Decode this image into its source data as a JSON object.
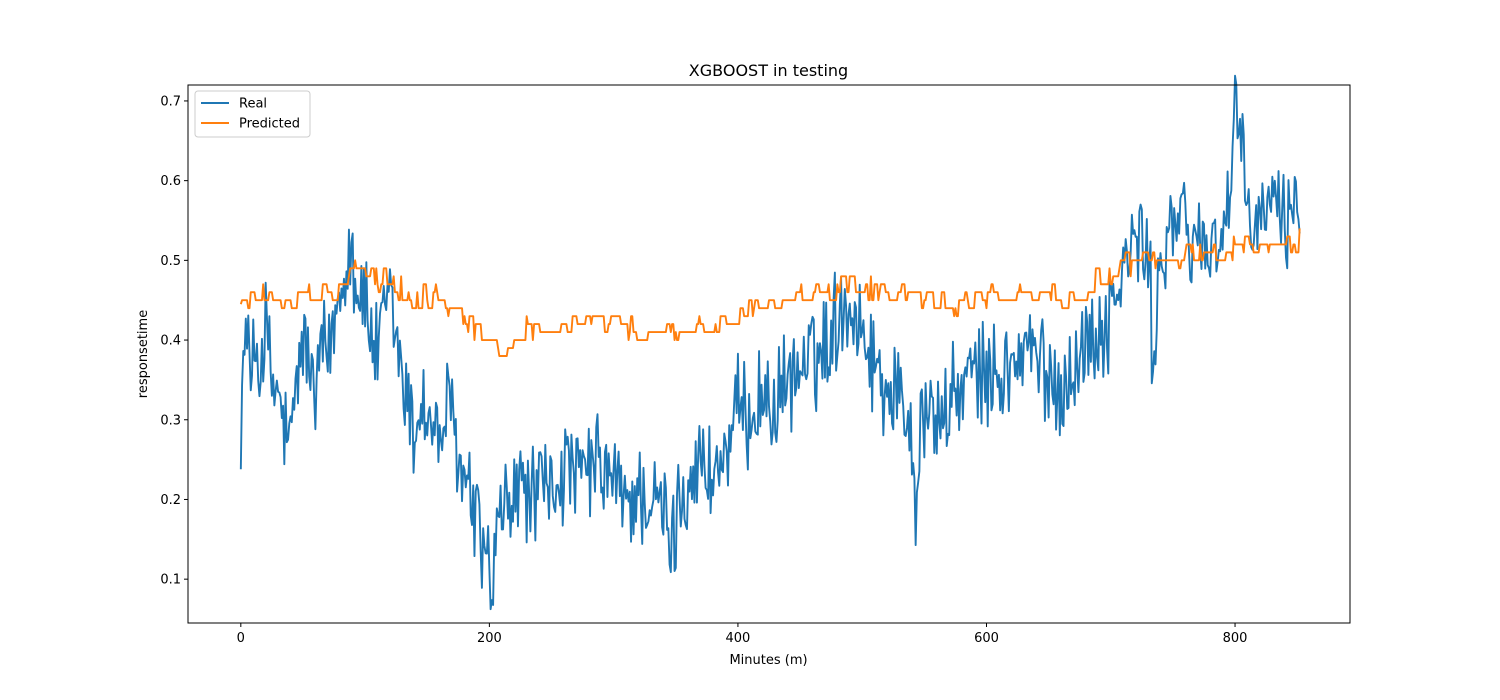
{
  "chart_data": {
    "type": "line",
    "title": "XGBOOST in testing",
    "xlabel": "Minutes (m)",
    "ylabel": "responsetime",
    "xlim": [
      -42.5,
      892.5
    ],
    "ylim": [
      0.045,
      0.72
    ],
    "xticks": [
      0,
      200,
      400,
      600,
      800
    ],
    "yticks": [
      0.1,
      0.2,
      0.3,
      0.4,
      0.5,
      0.6,
      0.7
    ],
    "grid": false,
    "legend_position": "top-left",
    "series": [
      {
        "name": "Real",
        "color": "#1f77b4",
        "keypoints": [
          [
            0,
            0.31
          ],
          [
            3,
            0.38
          ],
          [
            5,
            0.43
          ],
          [
            8,
            0.33
          ],
          [
            12,
            0.4
          ],
          [
            16,
            0.36
          ],
          [
            20,
            0.42
          ],
          [
            25,
            0.34
          ],
          [
            30,
            0.33
          ],
          [
            35,
            0.29
          ],
          [
            40,
            0.26
          ],
          [
            45,
            0.35
          ],
          [
            50,
            0.4
          ],
          [
            55,
            0.37
          ],
          [
            60,
            0.32
          ],
          [
            65,
            0.39
          ],
          [
            70,
            0.38
          ],
          [
            75,
            0.42
          ],
          [
            80,
            0.47
          ],
          [
            85,
            0.5
          ],
          [
            88,
            0.53
          ],
          [
            92,
            0.48
          ],
          [
            96,
            0.46
          ],
          [
            100,
            0.45
          ],
          [
            105,
            0.4
          ],
          [
            110,
            0.38
          ],
          [
            115,
            0.42
          ],
          [
            120,
            0.46
          ],
          [
            125,
            0.4
          ],
          [
            130,
            0.36
          ],
          [
            135,
            0.31
          ],
          [
            140,
            0.28
          ],
          [
            145,
            0.33
          ],
          [
            150,
            0.3
          ],
          [
            155,
            0.29
          ],
          [
            160,
            0.27
          ],
          [
            165,
            0.31
          ],
          [
            170,
            0.3
          ],
          [
            175,
            0.25
          ],
          [
            180,
            0.22
          ],
          [
            185,
            0.2
          ],
          [
            190,
            0.17
          ],
          [
            195,
            0.14
          ],
          [
            200,
            0.11
          ],
          [
            202,
            0.08
          ],
          [
            206,
            0.15
          ],
          [
            212,
            0.19
          ],
          [
            220,
            0.2
          ],
          [
            228,
            0.22
          ],
          [
            235,
            0.2
          ],
          [
            242,
            0.22
          ],
          [
            250,
            0.21
          ],
          [
            258,
            0.23
          ],
          [
            265,
            0.24
          ],
          [
            272,
            0.22
          ],
          [
            280,
            0.24
          ],
          [
            288,
            0.24
          ],
          [
            295,
            0.23
          ],
          [
            302,
            0.22
          ],
          [
            310,
            0.19
          ],
          [
            318,
            0.21
          ],
          [
            326,
            0.2
          ],
          [
            334,
            0.19
          ],
          [
            342,
            0.18
          ],
          [
            347,
            0.13
          ],
          [
            352,
            0.2
          ],
          [
            360,
            0.22
          ],
          [
            368,
            0.25
          ],
          [
            376,
            0.23
          ],
          [
            384,
            0.24
          ],
          [
            392,
            0.26
          ],
          [
            400,
            0.31
          ],
          [
            408,
            0.3
          ],
          [
            416,
            0.33
          ],
          [
            424,
            0.32
          ],
          [
            432,
            0.32
          ],
          [
            440,
            0.35
          ],
          [
            448,
            0.36
          ],
          [
            456,
            0.37
          ],
          [
            464,
            0.38
          ],
          [
            472,
            0.4
          ],
          [
            480,
            0.43
          ],
          [
            486,
            0.45
          ],
          [
            492,
            0.44
          ],
          [
            498,
            0.42
          ],
          [
            504,
            0.4
          ],
          [
            510,
            0.37
          ],
          [
            516,
            0.35
          ],
          [
            522,
            0.34
          ],
          [
            528,
            0.33
          ],
          [
            534,
            0.32
          ],
          [
            540,
            0.28
          ],
          [
            543,
            0.2
          ],
          [
            547,
            0.3
          ],
          [
            555,
            0.31
          ],
          [
            563,
            0.3
          ],
          [
            571,
            0.32
          ],
          [
            579,
            0.34
          ],
          [
            587,
            0.35
          ],
          [
            595,
            0.36
          ],
          [
            603,
            0.35
          ],
          [
            611,
            0.36
          ],
          [
            619,
            0.36
          ],
          [
            627,
            0.38
          ],
          [
            635,
            0.39
          ],
          [
            643,
            0.37
          ],
          [
            651,
            0.35
          ],
          [
            659,
            0.34
          ],
          [
            667,
            0.36
          ],
          [
            675,
            0.38
          ],
          [
            683,
            0.4
          ],
          [
            691,
            0.41
          ],
          [
            699,
            0.43
          ],
          [
            707,
            0.47
          ],
          [
            715,
            0.51
          ],
          [
            723,
            0.53
          ],
          [
            731,
            0.49
          ],
          [
            734,
            0.37
          ],
          [
            740,
            0.5
          ],
          [
            748,
            0.54
          ],
          [
            756,
            0.55
          ],
          [
            764,
            0.53
          ],
          [
            772,
            0.52
          ],
          [
            780,
            0.52
          ],
          [
            788,
            0.53
          ],
          [
            796,
            0.58
          ],
          [
            800,
            0.69
          ],
          [
            805,
            0.62
          ],
          [
            812,
            0.55
          ],
          [
            820,
            0.54
          ],
          [
            828,
            0.58
          ],
          [
            835,
            0.56
          ],
          [
            842,
            0.55
          ],
          [
            848,
            0.58
          ],
          [
            852,
            0.58
          ]
        ]
      },
      {
        "name": "Predicted",
        "color": "#ff7f0e",
        "keypoints": [
          [
            0,
            0.445
          ],
          [
            10,
            0.455
          ],
          [
            20,
            0.46
          ],
          [
            30,
            0.455
          ],
          [
            40,
            0.445
          ],
          [
            50,
            0.46
          ],
          [
            60,
            0.46
          ],
          [
            70,
            0.46
          ],
          [
            80,
            0.475
          ],
          [
            88,
            0.49
          ],
          [
            96,
            0.49
          ],
          [
            104,
            0.485
          ],
          [
            112,
            0.475
          ],
          [
            120,
            0.47
          ],
          [
            128,
            0.465
          ],
          [
            136,
            0.455
          ],
          [
            144,
            0.455
          ],
          [
            152,
            0.455
          ],
          [
            160,
            0.45
          ],
          [
            168,
            0.44
          ],
          [
            176,
            0.425
          ],
          [
            184,
            0.415
          ],
          [
            192,
            0.405
          ],
          [
            200,
            0.39
          ],
          [
            208,
            0.395
          ],
          [
            216,
            0.4
          ],
          [
            224,
            0.41
          ],
          [
            232,
            0.415
          ],
          [
            240,
            0.42
          ],
          [
            250,
            0.42
          ],
          [
            260,
            0.42
          ],
          [
            270,
            0.42
          ],
          [
            280,
            0.42
          ],
          [
            290,
            0.42
          ],
          [
            300,
            0.42
          ],
          [
            310,
            0.415
          ],
          [
            320,
            0.41
          ],
          [
            330,
            0.41
          ],
          [
            340,
            0.41
          ],
          [
            350,
            0.41
          ],
          [
            360,
            0.42
          ],
          [
            370,
            0.42
          ],
          [
            380,
            0.42
          ],
          [
            390,
            0.42
          ],
          [
            400,
            0.425
          ],
          [
            410,
            0.44
          ],
          [
            420,
            0.445
          ],
          [
            430,
            0.44
          ],
          [
            440,
            0.445
          ],
          [
            450,
            0.455
          ],
          [
            460,
            0.46
          ],
          [
            470,
            0.46
          ],
          [
            480,
            0.465
          ],
          [
            490,
            0.47
          ],
          [
            500,
            0.47
          ],
          [
            510,
            0.465
          ],
          [
            520,
            0.46
          ],
          [
            530,
            0.455
          ],
          [
            540,
            0.45
          ],
          [
            550,
            0.45
          ],
          [
            560,
            0.45
          ],
          [
            570,
            0.44
          ],
          [
            580,
            0.445
          ],
          [
            590,
            0.45
          ],
          [
            600,
            0.45
          ],
          [
            610,
            0.455
          ],
          [
            620,
            0.45
          ],
          [
            630,
            0.455
          ],
          [
            640,
            0.46
          ],
          [
            650,
            0.455
          ],
          [
            660,
            0.45
          ],
          [
            670,
            0.455
          ],
          [
            680,
            0.465
          ],
          [
            690,
            0.48
          ],
          [
            700,
            0.48
          ],
          [
            710,
            0.49
          ],
          [
            720,
            0.5
          ],
          [
            730,
            0.5
          ],
          [
            740,
            0.5
          ],
          [
            750,
            0.5
          ],
          [
            760,
            0.505
          ],
          [
            770,
            0.51
          ],
          [
            780,
            0.505
          ],
          [
            790,
            0.51
          ],
          [
            800,
            0.515
          ],
          [
            810,
            0.52
          ],
          [
            820,
            0.52
          ],
          [
            830,
            0.525
          ],
          [
            840,
            0.52
          ],
          [
            850,
            0.53
          ]
        ]
      }
    ]
  }
}
